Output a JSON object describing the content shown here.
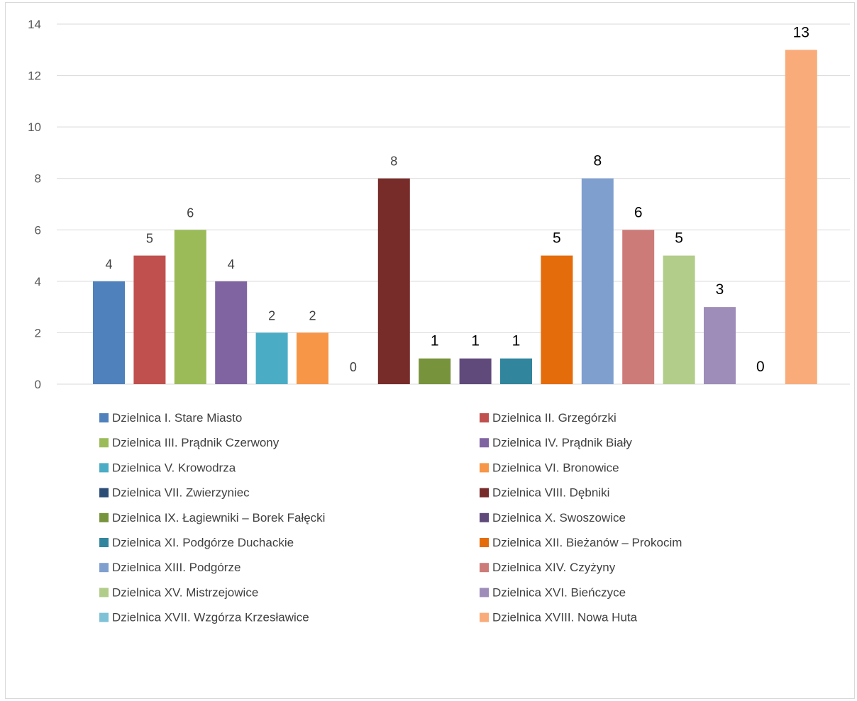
{
  "chart_data": {
    "type": "bar",
    "categories": [
      "Dzielnica I. Stare Miasto",
      "Dzielnica II. Grzegórzki",
      "Dzielnica III. Prądnik Czerwony",
      "Dzielnica IV. Prądnik Biały",
      "Dzielnica V. Krowodrza",
      "Dzielnica VI. Bronowice",
      "Dzielnica VII. Zwierzyniec",
      "Dzielnica VIII. Dębniki",
      "Dzielnica IX. Łagiewniki – Borek Fałęcki",
      "Dzielnica X. Swoszowice",
      "Dzielnica XI. Podgórze Duchackie",
      "Dzielnica XII. Bieżanów – Prokocim",
      "Dzielnica XIII. Podgórze",
      "Dzielnica XIV. Czyżyny",
      "Dzielnica XV. Mistrzejowice",
      "Dzielnica XVI. Bieńczyce",
      "Dzielnica XVII. Wzgórza Krzesławice",
      "Dzielnica XVIII. Nowa Huta"
    ],
    "values": [
      4,
      5,
      6,
      4,
      2,
      2,
      0,
      8,
      1,
      1,
      1,
      5,
      8,
      6,
      5,
      3,
      0,
      13
    ],
    "colors": [
      "#4f81bd",
      "#c0504d",
      "#9bbb59",
      "#8064a2",
      "#4bacc6",
      "#f79646",
      "#2c4d75",
      "#772c2a",
      "#77933c",
      "#604a7b",
      "#31859c",
      "#e46c0a",
      "#7f9fcf",
      "#cd7b79",
      "#b2cc8a",
      "#9e8cb9",
      "#7fc1d6",
      "#f9ab79"
    ],
    "title": "",
    "xlabel": "",
    "ylabel": "",
    "ylim": [
      0,
      14
    ],
    "yticks": [
      "0",
      "2",
      "4",
      "6",
      "8",
      "10",
      "12",
      "14"
    ],
    "grid": true,
    "legend_position": "bottom, two columns"
  }
}
